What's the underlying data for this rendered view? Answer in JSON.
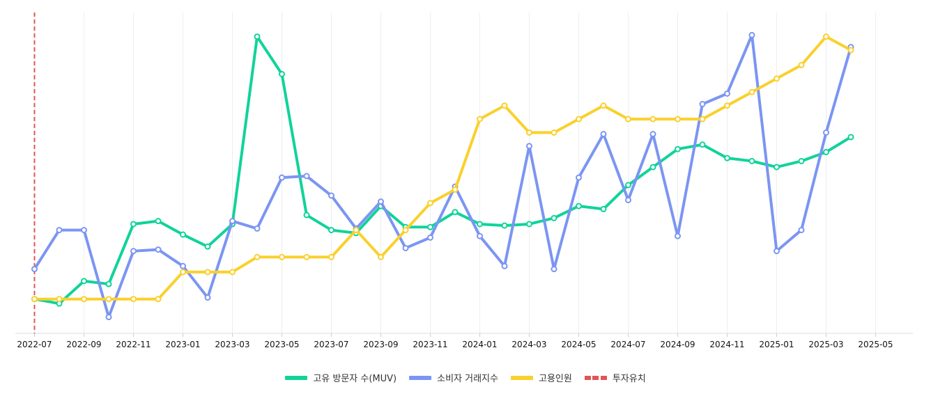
{
  "chart_data": {
    "type": "line",
    "title": "",
    "xlabel": "",
    "ylabel": "",
    "categories": [
      "2022-07",
      "2022-08",
      "2022-09",
      "2022-10",
      "2022-11",
      "2022-12",
      "2023-01",
      "2023-02",
      "2023-03",
      "2023-04",
      "2023-05",
      "2023-06",
      "2023-07",
      "2023-08",
      "2023-09",
      "2023-10",
      "2023-11",
      "2023-12",
      "2024-01",
      "2024-02",
      "2024-03",
      "2024-04",
      "2024-05",
      "2024-06",
      "2024-07",
      "2024-08",
      "2024-09",
      "2024-10",
      "2024-11",
      "2024-12",
      "2025-01",
      "2025-02",
      "2025-03",
      "2025-04",
      "2025-05"
    ],
    "x_tick_labels": [
      "2022-07",
      "2022-09",
      "2022-11",
      "2023-01",
      "2023-03",
      "2023-05",
      "2023-07",
      "2023-09",
      "2023-11",
      "2024-01",
      "2024-03",
      "2024-05",
      "2024-07",
      "2024-09",
      "2024-11",
      "2025-01",
      "2025-03",
      "2025-05"
    ],
    "ylim": [
      0,
      100
    ],
    "grid": "vertical",
    "y_axis_labels_shown": false,
    "series": [
      {
        "name": "고유 방문자 수(MUV)",
        "color": "#10d39a",
        "values": [
          9,
          7.5,
          15,
          14,
          34,
          35,
          30.5,
          26.5,
          34,
          96.5,
          84,
          37,
          32,
          31,
          40,
          33,
          33,
          38,
          34,
          33.5,
          34,
          36,
          40,
          39,
          47,
          53,
          59,
          60.5,
          56,
          55,
          53,
          55,
          58,
          63,
          null
        ]
      },
      {
        "name": "소비자 거래지수",
        "color": "#7b95f3",
        "values": [
          19,
          32,
          32,
          3,
          25,
          25.5,
          20,
          9.5,
          35,
          32.5,
          49.5,
          50,
          43.5,
          32.5,
          41.5,
          26,
          29.5,
          46.5,
          30,
          20,
          60,
          19,
          49.5,
          64,
          42,
          64,
          30,
          74,
          77.5,
          97,
          25,
          32,
          64.5,
          93,
          null
        ]
      },
      {
        "name": "고용인원",
        "color": "#fad02c",
        "values": [
          9,
          9,
          9,
          9,
          9,
          9,
          18,
          18,
          18,
          23,
          23,
          23,
          23,
          32,
          23,
          32,
          41,
          45.5,
          69,
          73.5,
          64.5,
          64.5,
          69,
          73.5,
          69,
          69,
          69,
          69,
          73.5,
          78,
          82.5,
          87,
          96.5,
          92,
          null
        ]
      }
    ],
    "events": [
      {
        "name": "투자유치",
        "x": "2022-07",
        "color": "#e05555"
      }
    ],
    "legend_position": "bottom-center"
  }
}
